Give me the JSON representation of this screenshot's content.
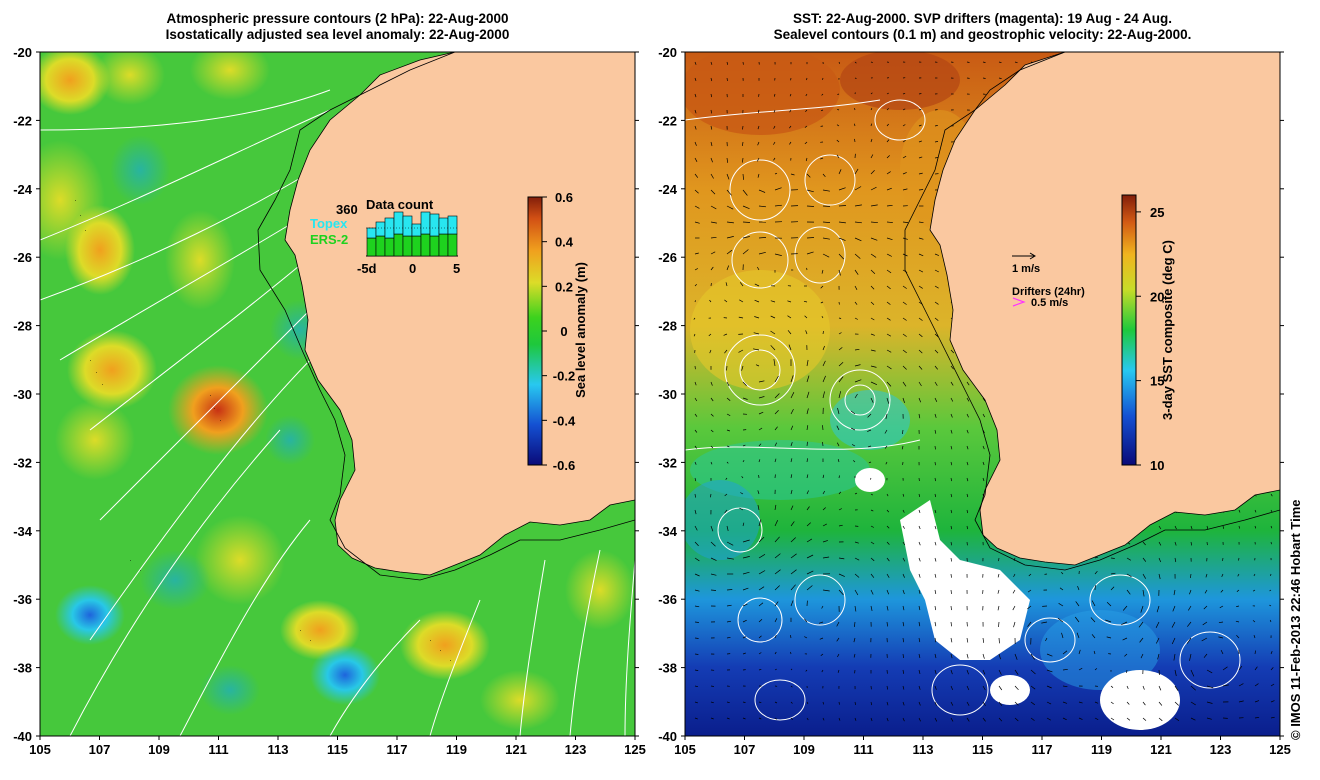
{
  "left_panel": {
    "title_line1": "Atmospheric pressure contours (2 hPa): 22-Aug-2000",
    "title_line2": "Isostatically adjusted sea level anomaly: 22-Aug-2000",
    "colorbar": {
      "label": "Sea level anomaly (m)",
      "ticks": [
        "0.6",
        "0.4",
        "0.2",
        "0",
        "-0.2",
        "-0.4",
        "-0.6"
      ],
      "range": [
        -0.6,
        0.6
      ]
    },
    "inset": {
      "title": "Data count",
      "count": "360",
      "mission1": "Topex",
      "mission2": "ERS-2",
      "mission1_color": "#28e6f0",
      "mission2_color": "#1ed21e",
      "xticks": [
        "-5d",
        "0",
        "5"
      ]
    }
  },
  "right_panel": {
    "title_line1": "SST: 22-Aug-2000. SVP drifters (magenta): 19 Aug - 24 Aug.",
    "title_line2": "Sealevel contours (0.1 m) and geostrophic velocity: 22-Aug-2000.",
    "colorbar": {
      "label": "3-day SST composite (deg C)",
      "ticks": [
        "25",
        "20",
        "15",
        "10"
      ],
      "range": [
        10,
        26
      ]
    },
    "velocity_scale_label": "1 m/s",
    "drifters_label": "Drifters (24hr)",
    "drifter_scale_label": "0.5 m/s",
    "drifter_color": "#ff33ff"
  },
  "axes": {
    "lat_ticks": [
      "-20",
      "-22",
      "-24",
      "-26",
      "-28",
      "-30",
      "-32",
      "-34",
      "-36",
      "-38",
      "-40"
    ],
    "lon_ticks": [
      "105",
      "107",
      "109",
      "111",
      "113",
      "115",
      "117",
      "119",
      "121",
      "123",
      "125"
    ],
    "lat_range": [
      -40,
      -20
    ],
    "lon_range": [
      105,
      125
    ]
  },
  "credit": "© IMOS 11-Feb-2013 22:46 Hobart Time",
  "colors": {
    "land": "#fac8a0",
    "contour": "#ffffff",
    "coastline": "#000000"
  }
}
